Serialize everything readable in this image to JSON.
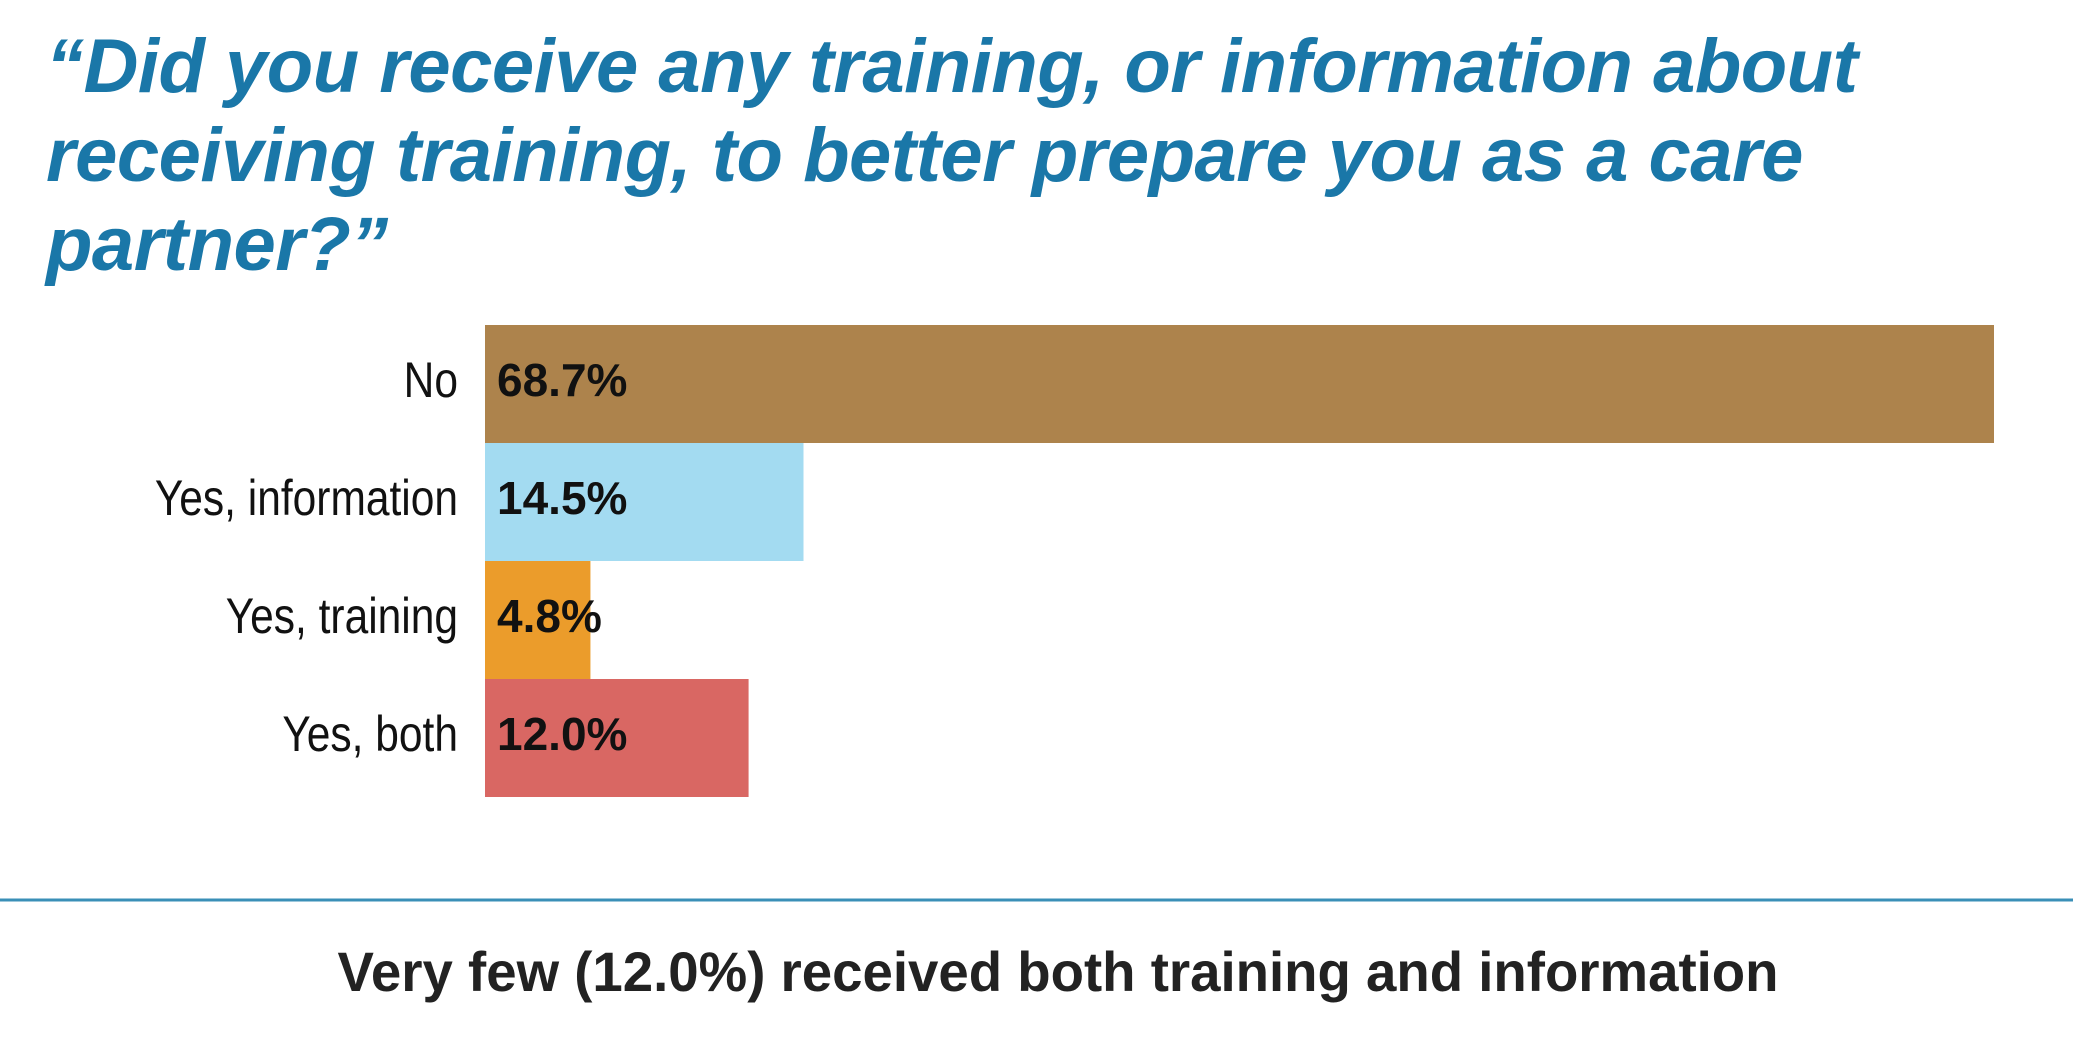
{
  "chart_data": {
    "type": "bar",
    "orientation": "horizontal",
    "title": "“Did you receive any training, or information about receiving training, to better prepare you as a care partner?”",
    "categories": [
      "No",
      "Yes, information",
      "Yes, training",
      "Yes, both"
    ],
    "values": [
      68.7,
      14.5,
      4.8,
      12.0
    ],
    "value_labels": [
      "68.7%",
      "14.5%",
      "4.8%",
      "12.0%"
    ],
    "colors": [
      "#ad834c",
      "#a3dbf1",
      "#eb9c2b",
      "#d96763"
    ],
    "footnote": "Very few (12.0%) received both training and information"
  }
}
